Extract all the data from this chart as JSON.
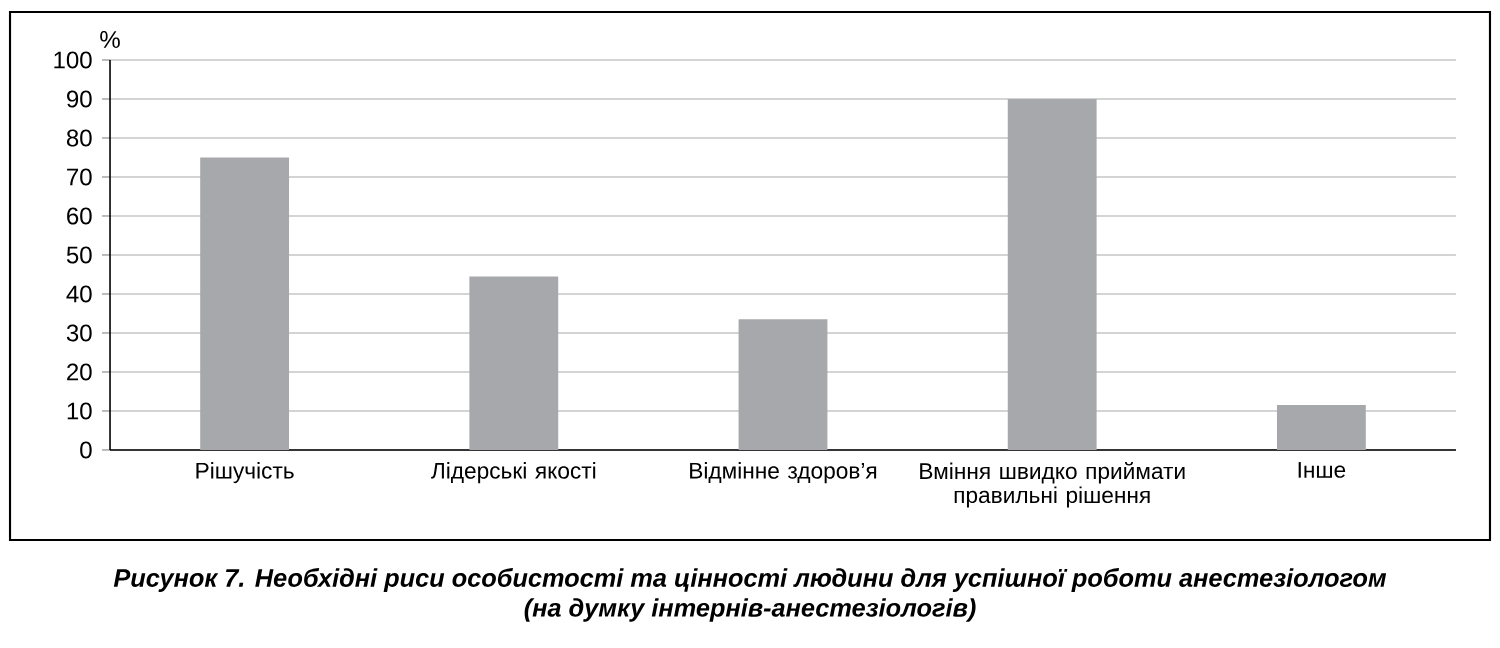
{
  "chart_data": {
    "type": "bar",
    "title": "Рисунок 7. Необхідні риси особистості та цінності людини для успішної роботи анестезіологом",
    "subtitle": "(на думку інтернів-анестезіологів)",
    "ylabel": "%",
    "categories": [
      "Рішучість",
      "Лідерські якості",
      "Відмінне здоров’я",
      "Вміння швидко приймати правильні рішення",
      "Інше"
    ],
    "values": [
      75,
      44.5,
      33.5,
      90,
      11.5
    ],
    "color": "#a7a8ab",
    "ylim": [
      0,
      100
    ],
    "yticks": [
      0,
      10,
      20,
      30,
      40,
      50,
      60,
      70,
      80,
      90,
      100
    ],
    "grid": "y"
  }
}
